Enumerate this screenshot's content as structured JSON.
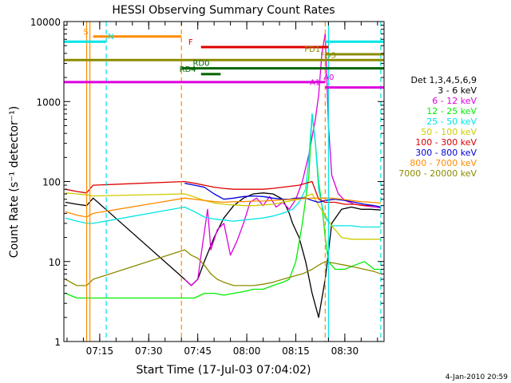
{
  "chart_data": {
    "type": "line",
    "title": "HESSI Observing Summary Count Rates",
    "xlabel": "Start Time (17-Jul-03 07:04:02)",
    "ylabel": "Count Rate (s⁻¹ detector⁻¹)",
    "y_scale": "log",
    "ylim": [
      1,
      10000
    ],
    "xlim": [
      "07:04:02",
      "08:42:00"
    ],
    "grid": false,
    "legend_title": "Det 1,3,4,5,6,9",
    "legend_position": "right",
    "x_ticks": [
      "07:15",
      "07:30",
      "07:45",
      "08:00",
      "08:15",
      "08:30"
    ],
    "y_ticks": [
      {
        "value": 1,
        "label": "1"
      },
      {
        "value": 10,
        "label": "10"
      },
      {
        "value": 100,
        "label": "100"
      },
      {
        "value": 1000,
        "label": "1000"
      },
      {
        "value": 10000,
        "label": "10000"
      }
    ],
    "series": [
      {
        "name": "3 - 6 keV",
        "color": "#000000",
        "points": [
          [
            "07:04:30",
            55
          ],
          [
            "07:08",
            52
          ],
          [
            "07:11",
            50
          ],
          [
            "07:13",
            62
          ],
          [
            "07:41",
            6
          ],
          [
            "07:43",
            5
          ],
          [
            "07:45",
            6
          ],
          [
            "07:47",
            10
          ],
          [
            "07:50",
            20
          ],
          [
            "07:53",
            35
          ],
          [
            "07:56",
            50
          ],
          [
            "07:59",
            62
          ],
          [
            "08:02",
            70
          ],
          [
            "08:05",
            72
          ],
          [
            "08:08",
            70
          ],
          [
            "08:11",
            60
          ],
          [
            "08:13",
            40
          ],
          [
            "08:14",
            30
          ],
          [
            "08:16",
            20
          ],
          [
            "08:18",
            10
          ],
          [
            "08:20",
            4
          ],
          [
            "08:22",
            2
          ],
          [
            "08:24",
            6
          ],
          [
            "08:26",
            30
          ],
          [
            "08:29",
            45
          ],
          [
            "08:32",
            48
          ],
          [
            "08:35",
            45
          ],
          [
            "08:38",
            45
          ],
          [
            "08:41",
            44
          ]
        ]
      },
      {
        "name": "6 - 12 keV",
        "color": "#dd00dd",
        "points": [
          [
            "07:41",
            6
          ],
          [
            "07:43",
            5
          ],
          [
            "07:45",
            6
          ],
          [
            "07:46",
            12
          ],
          [
            "07:48",
            45
          ],
          [
            "07:49",
            14
          ],
          [
            "07:51",
            25
          ],
          [
            "07:53",
            30
          ],
          [
            "07:55",
            12
          ],
          [
            "07:57",
            18
          ],
          [
            "07:59",
            30
          ],
          [
            "08:01",
            55
          ],
          [
            "08:03",
            62
          ],
          [
            "08:05",
            50
          ],
          [
            "08:07",
            65
          ],
          [
            "08:09",
            48
          ],
          [
            "08:11",
            55
          ],
          [
            "08:13",
            45
          ],
          [
            "08:15",
            60
          ],
          [
            "08:17",
            100
          ],
          [
            "08:19",
            220
          ],
          [
            "08:21",
            600
          ],
          [
            "08:22",
            1200
          ],
          [
            "08:23",
            4000
          ],
          [
            "08:24",
            7000
          ],
          [
            "08:25",
            500
          ],
          [
            "08:26",
            120
          ],
          [
            "08:28",
            70
          ],
          [
            "08:30",
            58
          ],
          [
            "08:33",
            52
          ],
          [
            "08:36",
            50
          ],
          [
            "08:39",
            48
          ],
          [
            "08:41",
            47
          ]
        ]
      },
      {
        "name": "12 - 25 keV",
        "color": "#00ee00",
        "points": [
          [
            "07:04:30",
            4
          ],
          [
            "07:08",
            3.5
          ],
          [
            "07:11",
            3.5
          ],
          [
            "07:13",
            3.5
          ],
          [
            "07:41",
            3.5
          ],
          [
            "07:44",
            3.5
          ],
          [
            "07:47",
            4
          ],
          [
            "07:50",
            4
          ],
          [
            "07:53",
            3.8
          ],
          [
            "07:56",
            4
          ],
          [
            "07:59",
            4.2
          ],
          [
            "08:02",
            4.5
          ],
          [
            "08:05",
            4.5
          ],
          [
            "08:08",
            5
          ],
          [
            "08:11",
            5.5
          ],
          [
            "08:13",
            6
          ],
          [
            "08:15",
            10
          ],
          [
            "08:17",
            30
          ],
          [
            "08:19",
            120
          ],
          [
            "08:20",
            700
          ],
          [
            "08:21",
            300
          ],
          [
            "08:22",
            100
          ],
          [
            "08:23",
            50
          ],
          [
            "08:24",
            20
          ],
          [
            "08:25",
            10
          ],
          [
            "08:27",
            8
          ],
          [
            "08:30",
            8
          ],
          [
            "08:33",
            9
          ],
          [
            "08:36",
            10
          ],
          [
            "08:39",
            8
          ],
          [
            "08:41",
            8
          ]
        ]
      },
      {
        "name": "25 - 50 keV",
        "color": "#00e5e5",
        "points": [
          [
            "07:04:30",
            35
          ],
          [
            "07:08",
            32
          ],
          [
            "07:11",
            30
          ],
          [
            "07:13",
            30
          ],
          [
            "07:41",
            48
          ],
          [
            "07:44",
            42
          ],
          [
            "07:47",
            36
          ],
          [
            "07:50",
            34
          ],
          [
            "07:53",
            33
          ],
          [
            "07:56",
            32
          ],
          [
            "07:59",
            33
          ],
          [
            "08:02",
            34
          ],
          [
            "08:05",
            35
          ],
          [
            "08:08",
            37
          ],
          [
            "08:11",
            40
          ],
          [
            "08:14",
            45
          ],
          [
            "08:16",
            55
          ],
          [
            "08:18",
            80
          ],
          [
            "08:19",
            200
          ],
          [
            "08:20",
            700
          ],
          [
            "08:21",
            300
          ],
          [
            "08:22",
            80
          ],
          [
            "08:23",
            50
          ],
          [
            "08:24",
            35
          ],
          [
            "08:26",
            28
          ],
          [
            "08:29",
            28
          ],
          [
            "08:32",
            28
          ],
          [
            "08:35",
            27
          ],
          [
            "08:38",
            27
          ],
          [
            "08:41",
            27
          ]
        ]
      },
      {
        "name": "50 - 100 keV",
        "color": "#cccc00",
        "points": [
          [
            "07:04:30",
            72
          ],
          [
            "07:08",
            70
          ],
          [
            "07:11",
            68
          ],
          [
            "07:13",
            66
          ],
          [
            "07:41",
            70
          ],
          [
            "07:44",
            64
          ],
          [
            "07:47",
            58
          ],
          [
            "07:50",
            54
          ],
          [
            "07:53",
            52
          ],
          [
            "07:56",
            51
          ],
          [
            "07:59",
            50
          ],
          [
            "08:02",
            50
          ],
          [
            "08:05",
            51
          ],
          [
            "08:08",
            52
          ],
          [
            "08:11",
            55
          ],
          [
            "08:14",
            58
          ],
          [
            "08:16",
            60
          ],
          [
            "08:18",
            65
          ],
          [
            "08:20",
            70
          ],
          [
            "08:22",
            50
          ],
          [
            "08:24",
            38
          ],
          [
            "08:26",
            28
          ],
          [
            "08:29",
            20
          ],
          [
            "08:32",
            19
          ],
          [
            "08:35",
            19
          ],
          [
            "08:38",
            19
          ],
          [
            "08:41",
            19
          ]
        ]
      },
      {
        "name": "100 - 300 keV",
        "color": "#dd0000",
        "points": [
          [
            "07:04:30",
            80
          ],
          [
            "07:08",
            75
          ],
          [
            "07:11",
            72
          ],
          [
            "07:13",
            90
          ],
          [
            "07:41",
            100
          ],
          [
            "07:44",
            95
          ],
          [
            "07:47",
            90
          ],
          [
            "07:50",
            85
          ],
          [
            "07:53",
            82
          ],
          [
            "07:56",
            80
          ],
          [
            "07:59",
            80
          ],
          [
            "08:02",
            80
          ],
          [
            "08:05",
            80
          ],
          [
            "08:08",
            82
          ],
          [
            "08:11",
            85
          ],
          [
            "08:14",
            88
          ],
          [
            "08:16",
            90
          ],
          [
            "08:18",
            95
          ],
          [
            "08:20",
            100
          ],
          [
            "08:22",
            60
          ],
          [
            "08:24",
            55
          ],
          [
            "08:27",
            55
          ],
          [
            "08:30",
            52
          ],
          [
            "08:33",
            52
          ],
          [
            "08:36",
            50
          ],
          [
            "08:39",
            50
          ],
          [
            "08:41",
            48
          ]
        ]
      },
      {
        "name": "300 - 800 keV",
        "color": "#0000dd",
        "points": [
          [
            "07:41",
            95
          ],
          [
            "07:44",
            90
          ],
          [
            "07:47",
            85
          ],
          [
            "07:50",
            70
          ],
          [
            "07:53",
            60
          ],
          [
            "07:56",
            62
          ],
          [
            "07:59",
            65
          ],
          [
            "08:02",
            66
          ],
          [
            "08:05",
            65
          ],
          [
            "08:08",
            62
          ],
          [
            "08:11",
            60
          ],
          [
            "08:13",
            60
          ],
          [
            "08:15",
            62
          ],
          [
            "08:18",
            62
          ],
          [
            "08:20",
            58
          ],
          [
            "08:22",
            55
          ],
          [
            "08:24",
            58
          ],
          [
            "08:27",
            60
          ],
          [
            "08:30",
            58
          ],
          [
            "08:33",
            55
          ],
          [
            "08:36",
            52
          ],
          [
            "08:39",
            50
          ],
          [
            "08:41",
            48
          ]
        ]
      },
      {
        "name": "800 - 7000 keV",
        "color": "#ff8c00",
        "points": [
          [
            "07:04:30",
            42
          ],
          [
            "07:08",
            38
          ],
          [
            "07:11",
            36
          ],
          [
            "07:13",
            40
          ],
          [
            "07:41",
            62
          ],
          [
            "07:44",
            60
          ],
          [
            "07:47",
            58
          ],
          [
            "07:50",
            56
          ],
          [
            "07:53",
            55
          ],
          [
            "07:56",
            56
          ],
          [
            "07:59",
            56
          ],
          [
            "08:02",
            57
          ],
          [
            "08:05",
            57
          ],
          [
            "08:08",
            58
          ],
          [
            "08:11",
            59
          ],
          [
            "08:14",
            60
          ],
          [
            "08:17",
            61
          ],
          [
            "08:20",
            62
          ],
          [
            "08:23",
            62
          ],
          [
            "08:26",
            62
          ],
          [
            "08:29",
            60
          ],
          [
            "08:32",
            58
          ],
          [
            "08:35",
            56
          ],
          [
            "08:38",
            55
          ],
          [
            "08:41",
            54
          ]
        ]
      },
      {
        "name": "7000 - 20000 keV",
        "color": "#8b8b00",
        "points": [
          [
            "07:04:30",
            6
          ],
          [
            "07:08",
            5
          ],
          [
            "07:11",
            5
          ],
          [
            "07:13",
            6
          ],
          [
            "07:41",
            14
          ],
          [
            "07:43",
            12
          ],
          [
            "07:45",
            11
          ],
          [
            "07:47",
            9
          ],
          [
            "07:49",
            7
          ],
          [
            "07:51",
            6
          ],
          [
            "07:53",
            5.5
          ],
          [
            "07:56",
            5
          ],
          [
            "07:59",
            5
          ],
          [
            "08:02",
            5
          ],
          [
            "08:05",
            5.2
          ],
          [
            "08:08",
            5.5
          ],
          [
            "08:11",
            6
          ],
          [
            "08:14",
            6.5
          ],
          [
            "08:17",
            7
          ],
          [
            "08:20",
            8
          ],
          [
            "08:22",
            9
          ],
          [
            "08:24",
            10
          ],
          [
            "08:27",
            9.5
          ],
          [
            "08:30",
            9
          ],
          [
            "08:33",
            8.5
          ],
          [
            "08:36",
            8
          ],
          [
            "08:39",
            7.5
          ],
          [
            "08:41",
            7
          ]
        ]
      }
    ],
    "flag_bars": [
      {
        "label": "S",
        "color": "#ff8c00",
        "y": 6500,
        "start": "07:13",
        "end": "07:40",
        "label_at": "07:12",
        "label_side": "left"
      },
      {
        "label": "N",
        "color": "#00e5e5",
        "y": 5600,
        "start": "07:04:02",
        "end": "07:17",
        "label_at": "07:17",
        "label_side": "right"
      },
      {
        "label": "F",
        "color": "#dd0000",
        "y": 4800,
        "start": "07:46",
        "end": "08:25",
        "label_at": "07:44",
        "label_side": "left"
      },
      {
        "label": "N",
        "color": "#00e5e5",
        "y": 5600,
        "start": "08:24",
        "end": "08:42",
        "label_at": "",
        "label_side": "right"
      },
      {
        "label": "FD1",
        "color": "#8b8b00",
        "y": 3900,
        "start": "08:24",
        "end": "08:42",
        "label_at": "08:23",
        "label_side": "left"
      },
      {
        "label": "FD3",
        "color": "#8b8b00",
        "y": 3300,
        "start": "07:04:02",
        "end": "08:42",
        "label_at": "08:22",
        "label_side": "right"
      },
      {
        "label": "RD0",
        "color": "#006400",
        "y": 2600,
        "start": "07:40",
        "end": "08:42",
        "label_at": "07:43",
        "label_side": "right"
      },
      {
        "label": "RD4",
        "color": "#006400",
        "y": 2200,
        "start": "07:46",
        "end": "07:52",
        "label_at": "07:45",
        "label_side": "left"
      },
      {
        "label": "A0",
        "color": "#dd00dd",
        "y": 1750,
        "start": "07:04:02",
        "end": "08:24",
        "label_at": "08:23",
        "label_side": "right"
      },
      {
        "label": "A1",
        "color": "#dd00dd",
        "y": 1500,
        "start": "08:24",
        "end": "08:42",
        "label_at": "08:23",
        "label_side": "left"
      }
    ],
    "vertical_markers": [
      {
        "time": "07:11",
        "color": "#ff8c00",
        "style": "solid"
      },
      {
        "time": "07:12",
        "color": "#ff8c00",
        "style": "solid"
      },
      {
        "time": "07:17",
        "color": "#00e5e5",
        "style": "dashed"
      },
      {
        "time": "07:40",
        "color": "#ff8c00",
        "style": "dashed"
      },
      {
        "time": "08:24",
        "color": "#ff8c00",
        "style": "dashed"
      },
      {
        "time": "08:25",
        "color": "#00e5e5",
        "style": "solid"
      },
      {
        "time": "08:41",
        "color": "#00e5e5",
        "style": "dashed"
      }
    ],
    "timestamp": "4-Jan-2010 20:59"
  }
}
